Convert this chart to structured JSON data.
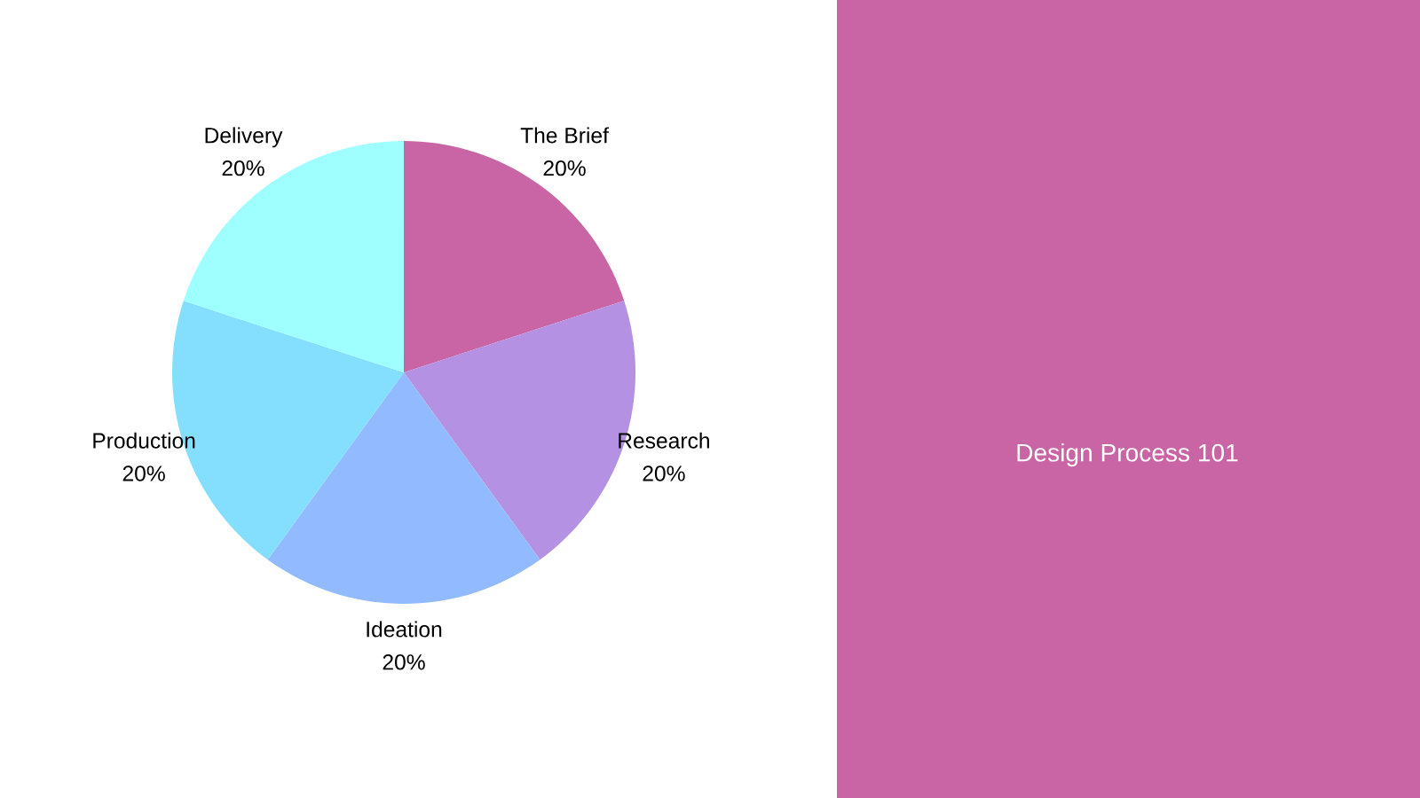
{
  "chart_data": {
    "type": "pie",
    "title": "Design Process 101",
    "categories": [
      "The Brief",
      "Research",
      "Ideation",
      "Production",
      "Delivery"
    ],
    "values": [
      20,
      20,
      20,
      20,
      20
    ],
    "value_labels": [
      "20%",
      "20%",
      "20%",
      "20%",
      "20%"
    ],
    "colors": [
      "#c964a5",
      "#b491e2",
      "#92bbff",
      "#84dffe",
      "#9efffe"
    ]
  }
}
